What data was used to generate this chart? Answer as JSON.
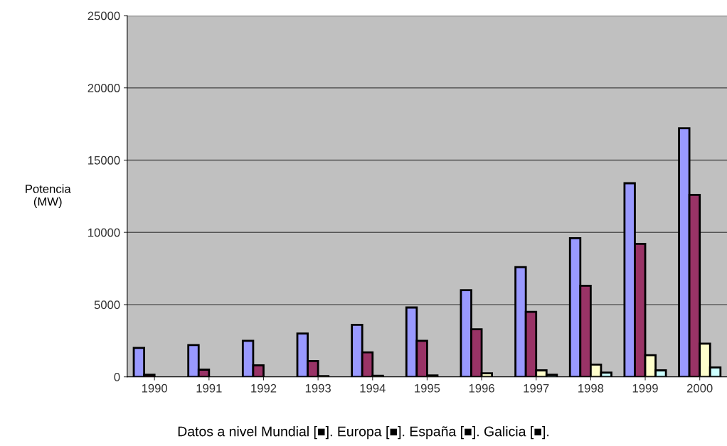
{
  "chart_data": {
    "type": "bar",
    "ylabel": "Potencia\n(MW)",
    "categories": [
      "1990",
      "1991",
      "1992",
      "1993",
      "1994",
      "1995",
      "1996",
      "1997",
      "1998",
      "1999",
      "2000"
    ],
    "series": [
      {
        "color": "#9999ff",
        "values": [
          2000,
          2200,
          2500,
          3000,
          3600,
          4800,
          6000,
          7600,
          9600,
          13400,
          17200
        ]
      },
      {
        "color": "#993366",
        "values": [
          150,
          500,
          800,
          1100,
          1700,
          2500,
          3300,
          4500,
          6300,
          9200,
          12600
        ]
      },
      {
        "color": "#ffffcc",
        "values": [
          null,
          null,
          null,
          50,
          70,
          100,
          250,
          450,
          850,
          1500,
          2300
        ]
      },
      {
        "color": "#ccffff",
        "values": [
          null,
          null,
          null,
          null,
          null,
          null,
          null,
          150,
          300,
          450,
          650
        ]
      }
    ],
    "ylim": [
      0,
      25000
    ],
    "yticks": [
      0,
      5000,
      10000,
      15000,
      20000,
      25000
    ],
    "grid": "y",
    "annotations": [
      "Datos a nivel Mundial [■]. Europa [■]. España [■]. Galicia [■]."
    ]
  }
}
